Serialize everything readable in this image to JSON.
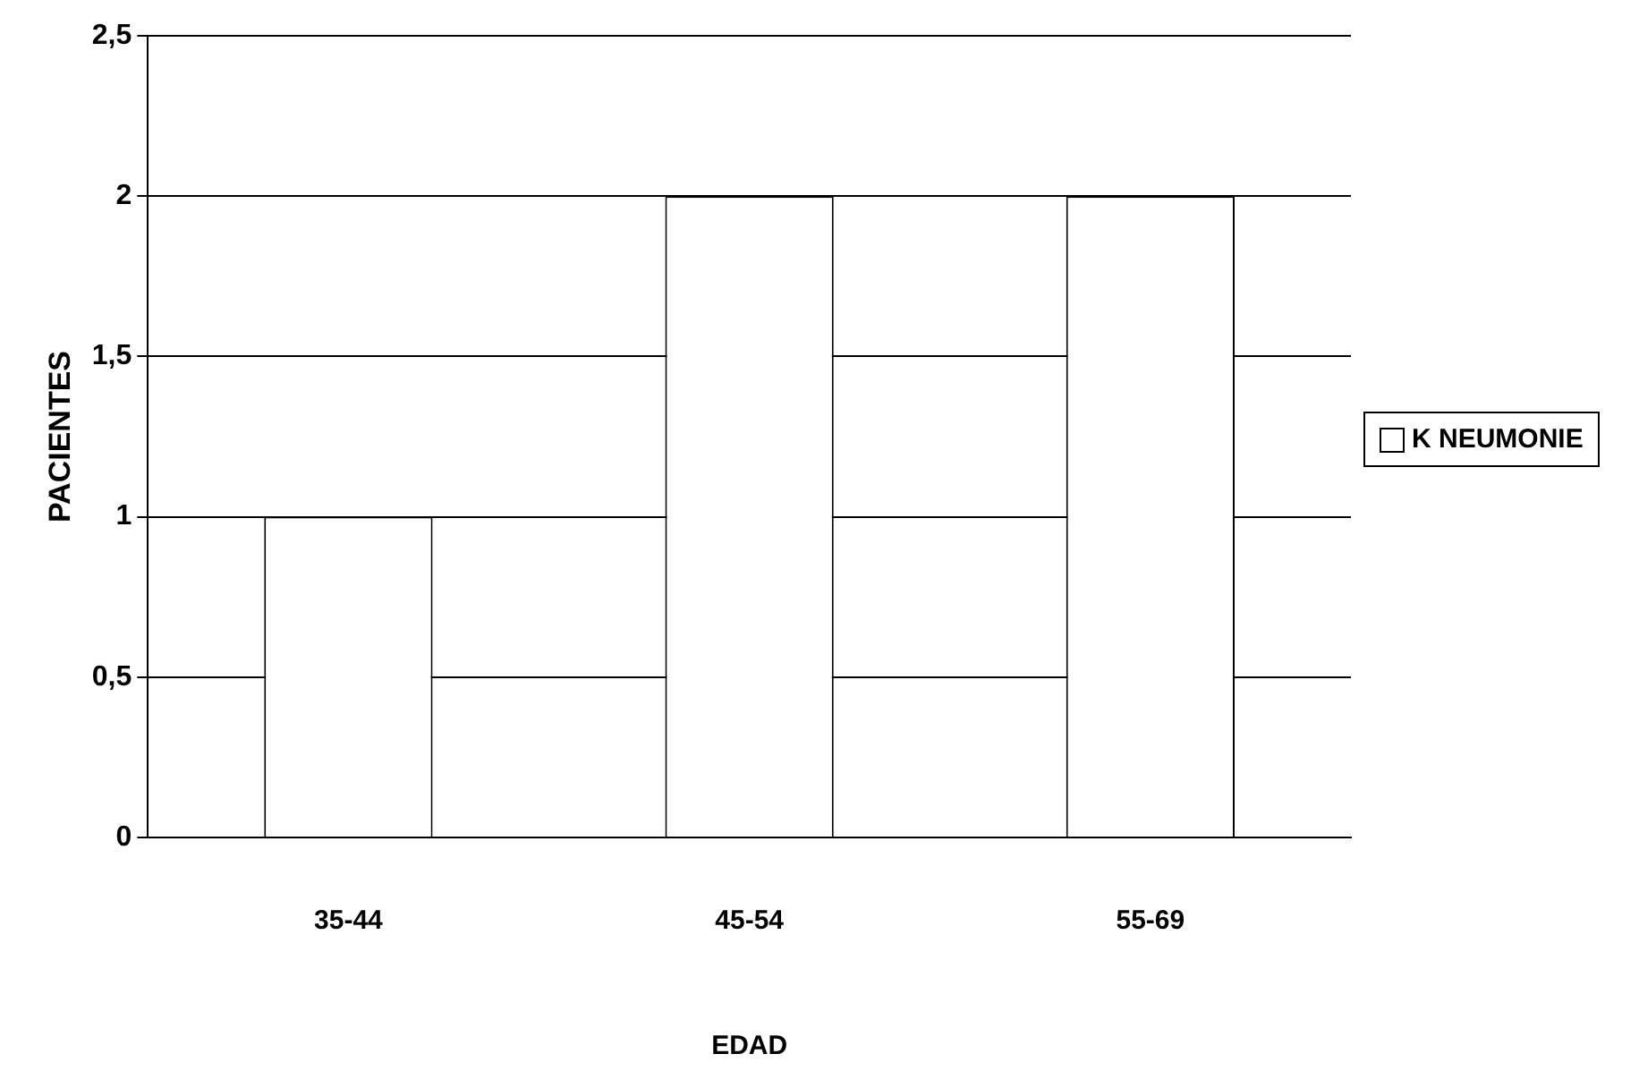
{
  "chart_data": {
    "type": "bar",
    "xlabel": "EDAD",
    "ylabel": "PACIENTES",
    "categories": [
      "35-44",
      "45-54",
      "55-69"
    ],
    "series": [
      {
        "name": "K NEUMONIE",
        "color": "#ffffff",
        "values": [
          1,
          2,
          2
        ]
      }
    ],
    "ylim": [
      0,
      2.5
    ],
    "yticks": [
      0,
      {
        "value": 0.5,
        "label": "0,5"
      },
      1,
      {
        "value": 1.5,
        "label": "1,5"
      },
      2,
      {
        "value": 2.5,
        "label": "2,5"
      }
    ],
    "grid": "y",
    "legend": "right"
  }
}
